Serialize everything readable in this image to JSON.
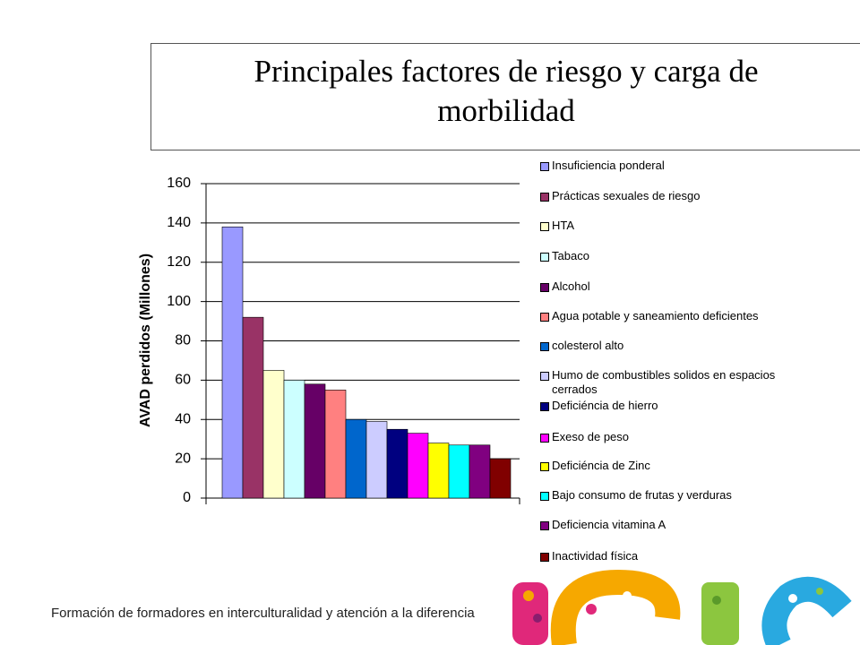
{
  "chart_data": {
    "type": "bar",
    "title": "Principales factores de riesgo y carga de morbilidad",
    "y_label": "AVAD perdidos (Millones)",
    "categories": [
      "Insuficiencia ponderal",
      "Prácticas sexuales de riesgo",
      "HTA",
      "Tabaco",
      "Alcohol",
      "Agua potable y saneamiento deficientes",
      "colesterol alto",
      "Humo de combustibles solidos en espacios cerrados",
      "Deficiéncia de hierro",
      "Exeso de peso",
      "Deficiéncia de Zinc",
      "Bajo consumo de frutas y verduras",
      "Deficiencia vitamina A",
      "Inactividad física"
    ],
    "values": [
      138,
      92,
      65,
      60,
      58,
      55,
      40,
      39,
      35,
      33,
      28,
      27,
      27,
      20
    ],
    "colors": [
      "#9999ff",
      "#993366",
      "#ffffcc",
      "#ccffff",
      "#660066",
      "#ff8080",
      "#0066cc",
      "#ccccff",
      "#000080",
      "#ff00ff",
      "#ffff00",
      "#00ffff",
      "#800080",
      "#800000"
    ],
    "ylim": [
      0,
      160
    ],
    "yticks": [
      0,
      20,
      40,
      60,
      80,
      100,
      120,
      140,
      160
    ],
    "grid": true
  },
  "footer": "Formación de formadores en interculturalidad y atención a la diferencia"
}
